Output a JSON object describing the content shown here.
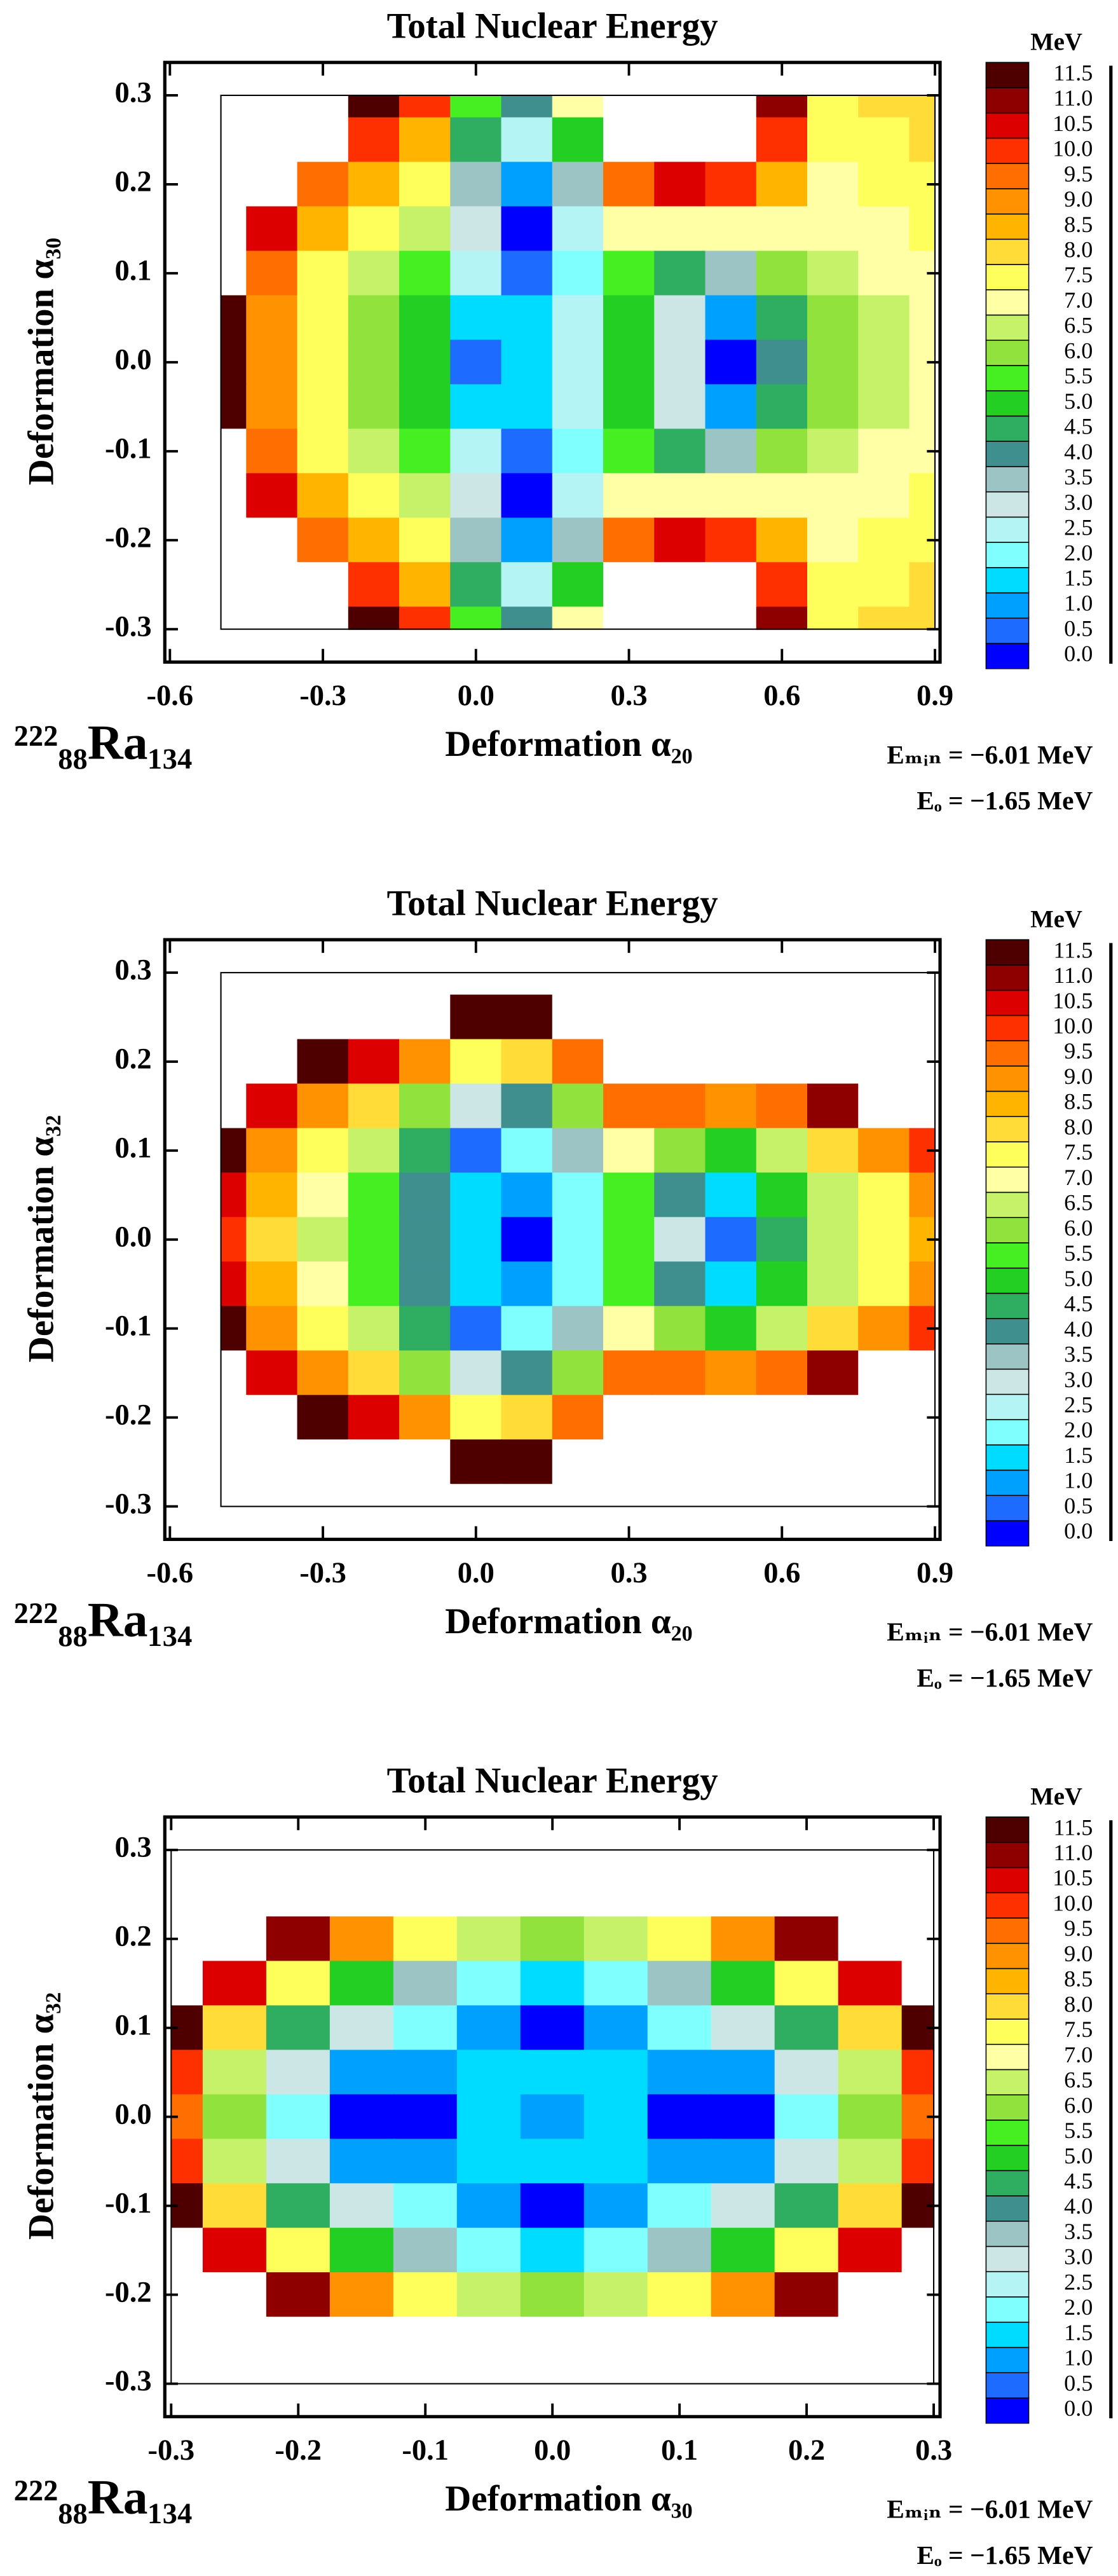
{
  "colorbar": {
    "unit": "MeV",
    "ticks": [
      {
        "value": 0,
        "label": "0.0"
      },
      0.5,
      {
        "value": 1,
        "label": "1.0"
      },
      1.5,
      {
        "value": 2,
        "label": "2.0"
      },
      2.5,
      {
        "value": 3,
        "label": "3.0"
      },
      3.5,
      {
        "value": 4,
        "label": "4.0"
      },
      4.5,
      {
        "value": 5,
        "label": "5.0"
      },
      5.5,
      {
        "value": 6,
        "label": "6.0"
      },
      6.5,
      {
        "value": 7,
        "label": "7.0"
      },
      7.5,
      {
        "value": 8,
        "label": "8.0"
      },
      8.5,
      {
        "value": 9,
        "label": "9.0"
      },
      9.5,
      {
        "value": 10,
        "label": "10.0"
      },
      10.5,
      {
        "value": 11,
        "label": "11.0"
      },
      11.5
    ],
    "colors": [
      "#0000ff",
      "#1e6cff",
      "#00a0ff",
      "#00dcff",
      "#80ffff",
      "#b4f4f4",
      "#cce6e6",
      "#9cc4c4",
      "#3f8f8f",
      "#2fae62",
      "#22cf22",
      "#45ef22",
      "#92e23e",
      "#c6f26a",
      "#ffffa6",
      "#ffff5c",
      "#ffdc38",
      "#ffb400",
      "#ff9200",
      "#ff6e00",
      "#ff3000",
      "#dc0000",
      "#8e0000",
      "#4e0000"
    ]
  },
  "chart_data": [
    {
      "type": "contour",
      "title": "Total Nuclear Energy",
      "x_label": "Deformation α₂₀",
      "y_label": "Deformation α₃₀",
      "nucleus": "²²²₈₈Ra₁₃₄",
      "annotations": [
        "Eₘᵢₙ = −6.01 MeV",
        "Eₒ = −1.65 MeV"
      ],
      "xlim": [
        -0.61,
        0.91
      ],
      "ylim": [
        -0.337,
        0.337
      ],
      "xticks": [
        -0.6,
        -0.3,
        {
          "value": 0,
          "label": "0.0"
        },
        0.3,
        0.6,
        0.9
      ],
      "yticks": [
        -0.3,
        -0.2,
        -0.1,
        {
          "value": 0,
          "label": "0.0"
        },
        0.1,
        0.2,
        0.3
      ],
      "x": [
        -0.5,
        -0.4,
        -0.3,
        -0.2,
        -0.1,
        0,
        0.1,
        0.2,
        0.3,
        0.4,
        0.5,
        0.6,
        0.7,
        0.8,
        0.9
      ],
      "y": [
        0.3,
        0.25,
        0.2,
        0.15,
        0.1,
        0.05,
        0,
        -0.05,
        -0.1,
        -0.15,
        -0.2,
        -0.25,
        -0.3
      ],
      "z": [
        [
          12,
          12,
          12,
          11.5,
          10,
          5.5,
          4,
          7,
          12,
          12,
          12,
          11,
          7.5,
          8,
          8.2
        ],
        [
          12,
          12,
          12,
          10,
          8.5,
          4.5,
          2.5,
          5,
          12,
          12,
          12,
          10,
          7.5,
          7.8,
          8
        ],
        [
          12,
          12,
          9.8,
          8.5,
          7.5,
          3.5,
          1,
          3.5,
          9.5,
          10.5,
          10,
          8.5,
          7.2,
          7.5,
          7.8
        ],
        [
          12,
          10.5,
          8.5,
          7.5,
          6.5,
          3,
          0,
          2.5,
          7,
          7,
          7,
          7,
          7,
          7.2,
          7.5
        ],
        [
          12,
          9.5,
          7.8,
          6.8,
          5.5,
          2.5,
          0.5,
          2,
          5.5,
          4.5,
          3.5,
          6,
          6.8,
          7,
          7.2
        ],
        [
          11.5,
          9,
          7.5,
          6.2,
          5,
          1.5,
          1.5,
          2.5,
          5,
          3,
          1,
          4.5,
          6.2,
          6.8,
          7
        ],
        [
          11.5,
          9,
          7.5,
          6,
          5,
          0.5,
          1.5,
          2.5,
          5,
          3,
          0.3,
          4,
          6,
          6.5,
          7
        ],
        [
          11.5,
          9,
          7.5,
          6.2,
          5,
          1.5,
          1.5,
          2.5,
          5,
          3,
          1,
          4.5,
          6.2,
          6.8,
          7
        ],
        [
          12,
          9.5,
          7.8,
          6.8,
          5.5,
          2.5,
          0.5,
          2,
          5.5,
          4.5,
          3.5,
          6,
          6.8,
          7,
          7.2
        ],
        [
          12,
          10.5,
          8.5,
          7.5,
          6.5,
          3,
          0,
          2.5,
          7,
          7,
          7,
          7,
          7,
          7.2,
          7.5
        ],
        [
          12,
          12,
          9.8,
          8.5,
          7.5,
          3.5,
          1,
          3.5,
          9.5,
          10.5,
          10,
          8.5,
          7.2,
          7.5,
          7.8
        ],
        [
          12,
          12,
          12,
          10,
          8.5,
          4.5,
          2.5,
          5,
          12,
          12,
          12,
          10,
          7.5,
          7.8,
          8
        ],
        [
          12,
          12,
          12,
          11.5,
          10,
          5.5,
          4,
          7,
          12,
          12,
          12,
          11,
          7.5,
          8,
          8.2
        ]
      ]
    },
    {
      "type": "contour",
      "title": "Total Nuclear Energy",
      "x_label": "Deformation α₂₀",
      "y_label": "Deformation α₃₂",
      "nucleus": "²²²₈₈Ra₁₃₄",
      "annotations": [
        "Eₘᵢₙ = −6.01 MeV",
        "Eₒ = −1.65 MeV"
      ],
      "xlim": [
        -0.61,
        0.91
      ],
      "ylim": [
        -0.337,
        0.337
      ],
      "xticks": [
        -0.6,
        -0.3,
        {
          "value": 0,
          "label": "0.0"
        },
        0.3,
        0.6,
        0.9
      ],
      "yticks": [
        -0.3,
        -0.2,
        -0.1,
        {
          "value": 0,
          "label": "0.0"
        },
        0.1,
        0.2,
        0.3
      ],
      "x": [
        -0.5,
        -0.4,
        -0.3,
        -0.2,
        -0.1,
        0,
        0.1,
        0.2,
        0.3,
        0.4,
        0.5,
        0.6,
        0.7,
        0.8,
        0.9
      ],
      "y": [
        0.3,
        0.25,
        0.2,
        0.15,
        0.1,
        0.05,
        0,
        -0.05,
        -0.1,
        -0.15,
        -0.2,
        -0.25,
        -0.3
      ],
      "z": [
        [
          12,
          12,
          12,
          12,
          12,
          12,
          12,
          12,
          12,
          12,
          12,
          12,
          12,
          12,
          12
        ],
        [
          12,
          12,
          12,
          12,
          12,
          11.5,
          11.5,
          12,
          12,
          12,
          12,
          12,
          12,
          12,
          12
        ],
        [
          12,
          12,
          11.5,
          10.5,
          9,
          7.5,
          8,
          9.5,
          12,
          12,
          12,
          12,
          12,
          12,
          12
        ],
        [
          12,
          10.5,
          9,
          8,
          6,
          3,
          4,
          6,
          9.5,
          9.5,
          9,
          9.5,
          11,
          12,
          12
        ],
        [
          11.5,
          9,
          7.5,
          6.5,
          4.5,
          0.5,
          2,
          3.5,
          7,
          6,
          5,
          6.5,
          8,
          9,
          10
        ],
        [
          10.5,
          8.5,
          7,
          5.8,
          4.2,
          1.5,
          1,
          2,
          5.8,
          4,
          1.5,
          5,
          6.8,
          7.8,
          9
        ],
        [
          10,
          8,
          6.5,
          5.5,
          4,
          1.5,
          0,
          2,
          5.5,
          3,
          0.5,
          4.5,
          6.5,
          7.5,
          8.5
        ],
        [
          10.5,
          8.5,
          7,
          5.8,
          4.2,
          1.5,
          1,
          2,
          5.8,
          4,
          1.5,
          5,
          6.8,
          7.8,
          9
        ],
        [
          11.5,
          9,
          7.5,
          6.5,
          4.5,
          0.5,
          2,
          3.5,
          7,
          6,
          5,
          6.5,
          8,
          9,
          10
        ],
        [
          12,
          10.5,
          9,
          8,
          6,
          3,
          4,
          6,
          9.5,
          9.5,
          9,
          9.5,
          11,
          12,
          12
        ],
        [
          12,
          12,
          11.5,
          10.5,
          9,
          7.5,
          8,
          9.5,
          12,
          12,
          12,
          12,
          12,
          12,
          12
        ],
        [
          12,
          12,
          12,
          12,
          12,
          11.5,
          11.5,
          12,
          12,
          12,
          12,
          12,
          12,
          12,
          12
        ],
        [
          12,
          12,
          12,
          12,
          12,
          12,
          12,
          12,
          12,
          12,
          12,
          12,
          12,
          12,
          12
        ]
      ]
    },
    {
      "type": "contour",
      "title": "Total Nuclear Energy",
      "x_label": "Deformation α₃₀",
      "y_label": "Deformation α₃₂",
      "nucleus": "²²²₈₈Ra₁₃₄",
      "annotations": [
        "Eₘᵢₙ = −6.01 MeV",
        "Eₒ = −1.65 MeV"
      ],
      "xlim": [
        -0.305,
        0.305
      ],
      "ylim": [
        -0.337,
        0.337
      ],
      "xticks": [
        -0.3,
        -0.2,
        -0.1,
        {
          "value": 0,
          "label": "0.0"
        },
        0.1,
        0.2,
        0.3
      ],
      "yticks": [
        -0.3,
        -0.2,
        -0.1,
        {
          "value": 0,
          "label": "0.0"
        },
        0.1,
        0.2,
        0.3
      ],
      "x": [
        -0.3,
        -0.25,
        -0.2,
        -0.15,
        -0.1,
        -0.05,
        0,
        0.05,
        0.1,
        0.15,
        0.2,
        0.25,
        0.3
      ],
      "y": [
        0.3,
        0.25,
        0.2,
        0.15,
        0.1,
        0.05,
        0,
        -0.05,
        -0.1,
        -0.15,
        -0.2,
        -0.25,
        -0.3
      ],
      "z": [
        [
          12,
          12,
          12,
          12,
          12,
          12,
          12,
          12,
          12,
          12,
          12,
          12,
          12
        ],
        [
          12,
          12,
          12,
          12,
          12,
          12,
          12,
          12,
          12,
          12,
          12,
          12,
          12
        ],
        [
          12,
          12,
          11,
          9,
          7.5,
          6.5,
          6,
          6.5,
          7.5,
          9,
          11,
          12,
          12
        ],
        [
          12,
          10.5,
          7.5,
          5,
          3.5,
          2,
          1.5,
          2,
          3.5,
          5,
          7.5,
          10.5,
          12
        ],
        [
          11.5,
          8,
          4.5,
          3,
          2,
          1,
          0.3,
          1,
          2,
          3,
          4.5,
          8,
          11.5
        ],
        [
          10,
          6.5,
          3,
          1,
          1,
          1.5,
          1.5,
          1.5,
          1,
          1,
          3,
          6.5,
          10
        ],
        [
          9.5,
          6,
          2,
          0,
          0,
          1.5,
          1,
          1.5,
          0,
          0,
          2,
          6,
          9.5
        ],
        [
          10,
          6.5,
          3,
          1,
          1,
          1.5,
          1.5,
          1.5,
          1,
          1,
          3,
          6.5,
          10
        ],
        [
          11.5,
          8,
          4.5,
          3,
          2,
          1,
          0.3,
          1,
          2,
          3,
          4.5,
          8,
          11.5
        ],
        [
          12,
          10.5,
          7.5,
          5,
          3.5,
          2,
          1.5,
          2,
          3.5,
          5,
          7.5,
          10.5,
          12
        ],
        [
          12,
          12,
          11,
          9,
          7.5,
          6.5,
          6,
          6.5,
          7.5,
          9,
          11,
          12,
          12
        ],
        [
          12,
          12,
          12,
          12,
          12,
          12,
          12,
          12,
          12,
          12,
          12,
          12,
          12
        ],
        [
          12,
          12,
          12,
          12,
          12,
          12,
          12,
          12,
          12,
          12,
          12,
          12,
          12
        ]
      ]
    }
  ]
}
